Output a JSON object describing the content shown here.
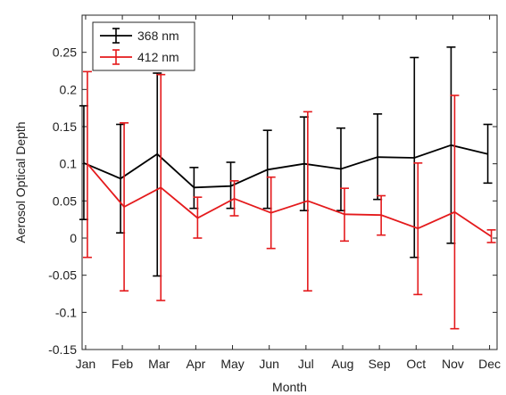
{
  "chart_data": {
    "type": "line",
    "xlabel": "Month",
    "ylabel": "Aerosol Optical Depth",
    "categories": [
      "Jan",
      "Feb",
      "Mar",
      "Apr",
      "May",
      "Jun",
      "Jul",
      "Aug",
      "Sep",
      "Oct",
      "Nov",
      "Dec"
    ],
    "ylim": [
      -0.15,
      0.3
    ],
    "yticks": [
      -0.15,
      -0.1,
      -0.05,
      0,
      0.05,
      0.1,
      0.15,
      0.2,
      0.25
    ],
    "ytick_labels": [
      "-0.15",
      "-0.1",
      "-0.05",
      "0",
      "0.05",
      "0.1",
      "0.15",
      "0.2",
      "0.25"
    ],
    "grid": false,
    "legend_position": "top-left",
    "series": [
      {
        "name": "368 nm",
        "color": "#000000",
        "values": [
          0.101,
          0.08,
          0.113,
          0.068,
          0.07,
          0.092,
          0.1,
          0.093,
          0.109,
          0.108,
          0.125,
          0.113
        ],
        "err_low": [
          0.025,
          0.007,
          -0.051,
          0.04,
          0.04,
          0.04,
          0.037,
          0.037,
          0.052,
          -0.026,
          -0.007,
          0.074
        ],
        "err_high": [
          0.178,
          0.153,
          0.222,
          0.095,
          0.102,
          0.145,
          0.163,
          0.148,
          0.167,
          0.243,
          0.257,
          0.153
        ]
      },
      {
        "name": "412 nm",
        "color": "#e41a1c",
        "values": [
          0.1,
          0.042,
          0.068,
          0.027,
          0.053,
          0.034,
          0.05,
          0.032,
          0.031,
          0.013,
          0.035,
          0.002
        ],
        "err_low": [
          -0.026,
          -0.071,
          -0.084,
          0.0,
          0.03,
          -0.014,
          -0.071,
          -0.004,
          0.004,
          -0.076,
          -0.122,
          -0.006
        ],
        "err_high": [
          0.224,
          0.155,
          0.22,
          0.055,
          0.077,
          0.082,
          0.17,
          0.067,
          0.057,
          0.101,
          0.192,
          0.011
        ]
      }
    ]
  }
}
